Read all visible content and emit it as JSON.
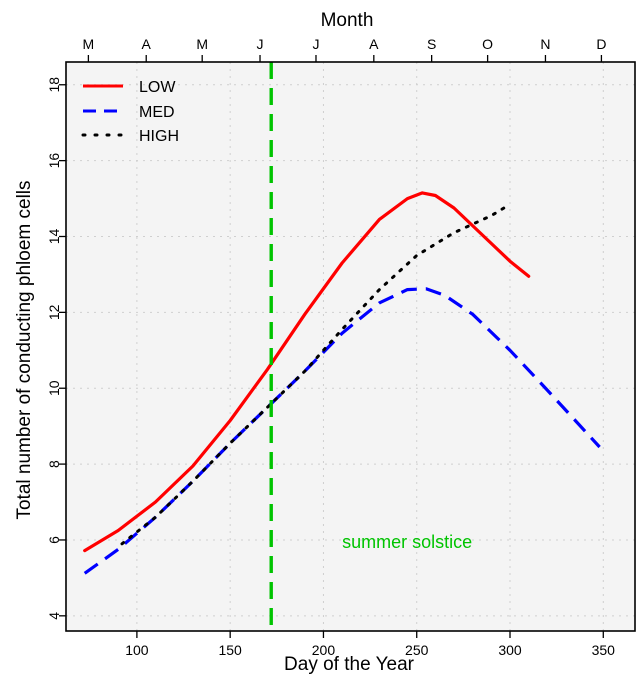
{
  "chart_data": {
    "type": "line",
    "xlabel": "Day of the Year",
    "ylabel": "Total number of conducting phloem cells",
    "top_axis_title": "Month",
    "xlim": [
      62,
      367
    ],
    "ylim": [
      3.6,
      18.6
    ],
    "x_ticks": [
      100,
      150,
      200,
      250,
      300,
      350
    ],
    "y_ticks": [
      4,
      6,
      8,
      10,
      12,
      14,
      16,
      18
    ],
    "month_ticks": [
      {
        "label": "M",
        "day": 74
      },
      {
        "label": "A",
        "day": 105
      },
      {
        "label": "M",
        "day": 135
      },
      {
        "label": "J",
        "day": 166
      },
      {
        "label": "J",
        "day": 196
      },
      {
        "label": "A",
        "day": 227
      },
      {
        "label": "S",
        "day": 258
      },
      {
        "label": "O",
        "day": 288
      },
      {
        "label": "N",
        "day": 319
      },
      {
        "label": "D",
        "day": 349
      }
    ],
    "grid": true,
    "legend_position": "top-left",
    "series": [
      {
        "name": "LOW",
        "color": "#ff0000",
        "style": "solid",
        "x": [
          72,
          90,
          110,
          130,
          150,
          170,
          190,
          210,
          230,
          245,
          253,
          260,
          270,
          285,
          300,
          310
        ],
        "y": [
          5.72,
          6.25,
          7.0,
          7.95,
          9.15,
          10.5,
          11.95,
          13.3,
          14.45,
          15.0,
          15.15,
          15.08,
          14.75,
          14.05,
          13.35,
          12.95
        ]
      },
      {
        "name": "MED",
        "color": "#0000ff",
        "style": "dashed",
        "x": [
          72,
          90,
          110,
          130,
          150,
          170,
          190,
          210,
          230,
          245,
          255,
          265,
          280,
          300,
          320,
          348
        ],
        "y": [
          5.12,
          5.75,
          6.6,
          7.55,
          8.55,
          9.5,
          10.45,
          11.45,
          12.25,
          12.6,
          12.62,
          12.45,
          11.95,
          11.0,
          9.95,
          8.45
        ]
      },
      {
        "name": "HIGH",
        "color": "#000000",
        "style": "dotted",
        "x": [
          92,
          110,
          130,
          150,
          170,
          190,
          210,
          230,
          250,
          270,
          290,
          300
        ],
        "y": [
          5.9,
          6.6,
          7.55,
          8.55,
          9.5,
          10.45,
          11.55,
          12.6,
          13.5,
          14.1,
          14.55,
          14.85
        ]
      }
    ],
    "reference_line": {
      "x": 172,
      "color": "#00c400",
      "style": "dashed"
    },
    "annotation": {
      "text": "summer solstice",
      "x": 210,
      "y": 5.95,
      "color": "#00c400"
    }
  }
}
